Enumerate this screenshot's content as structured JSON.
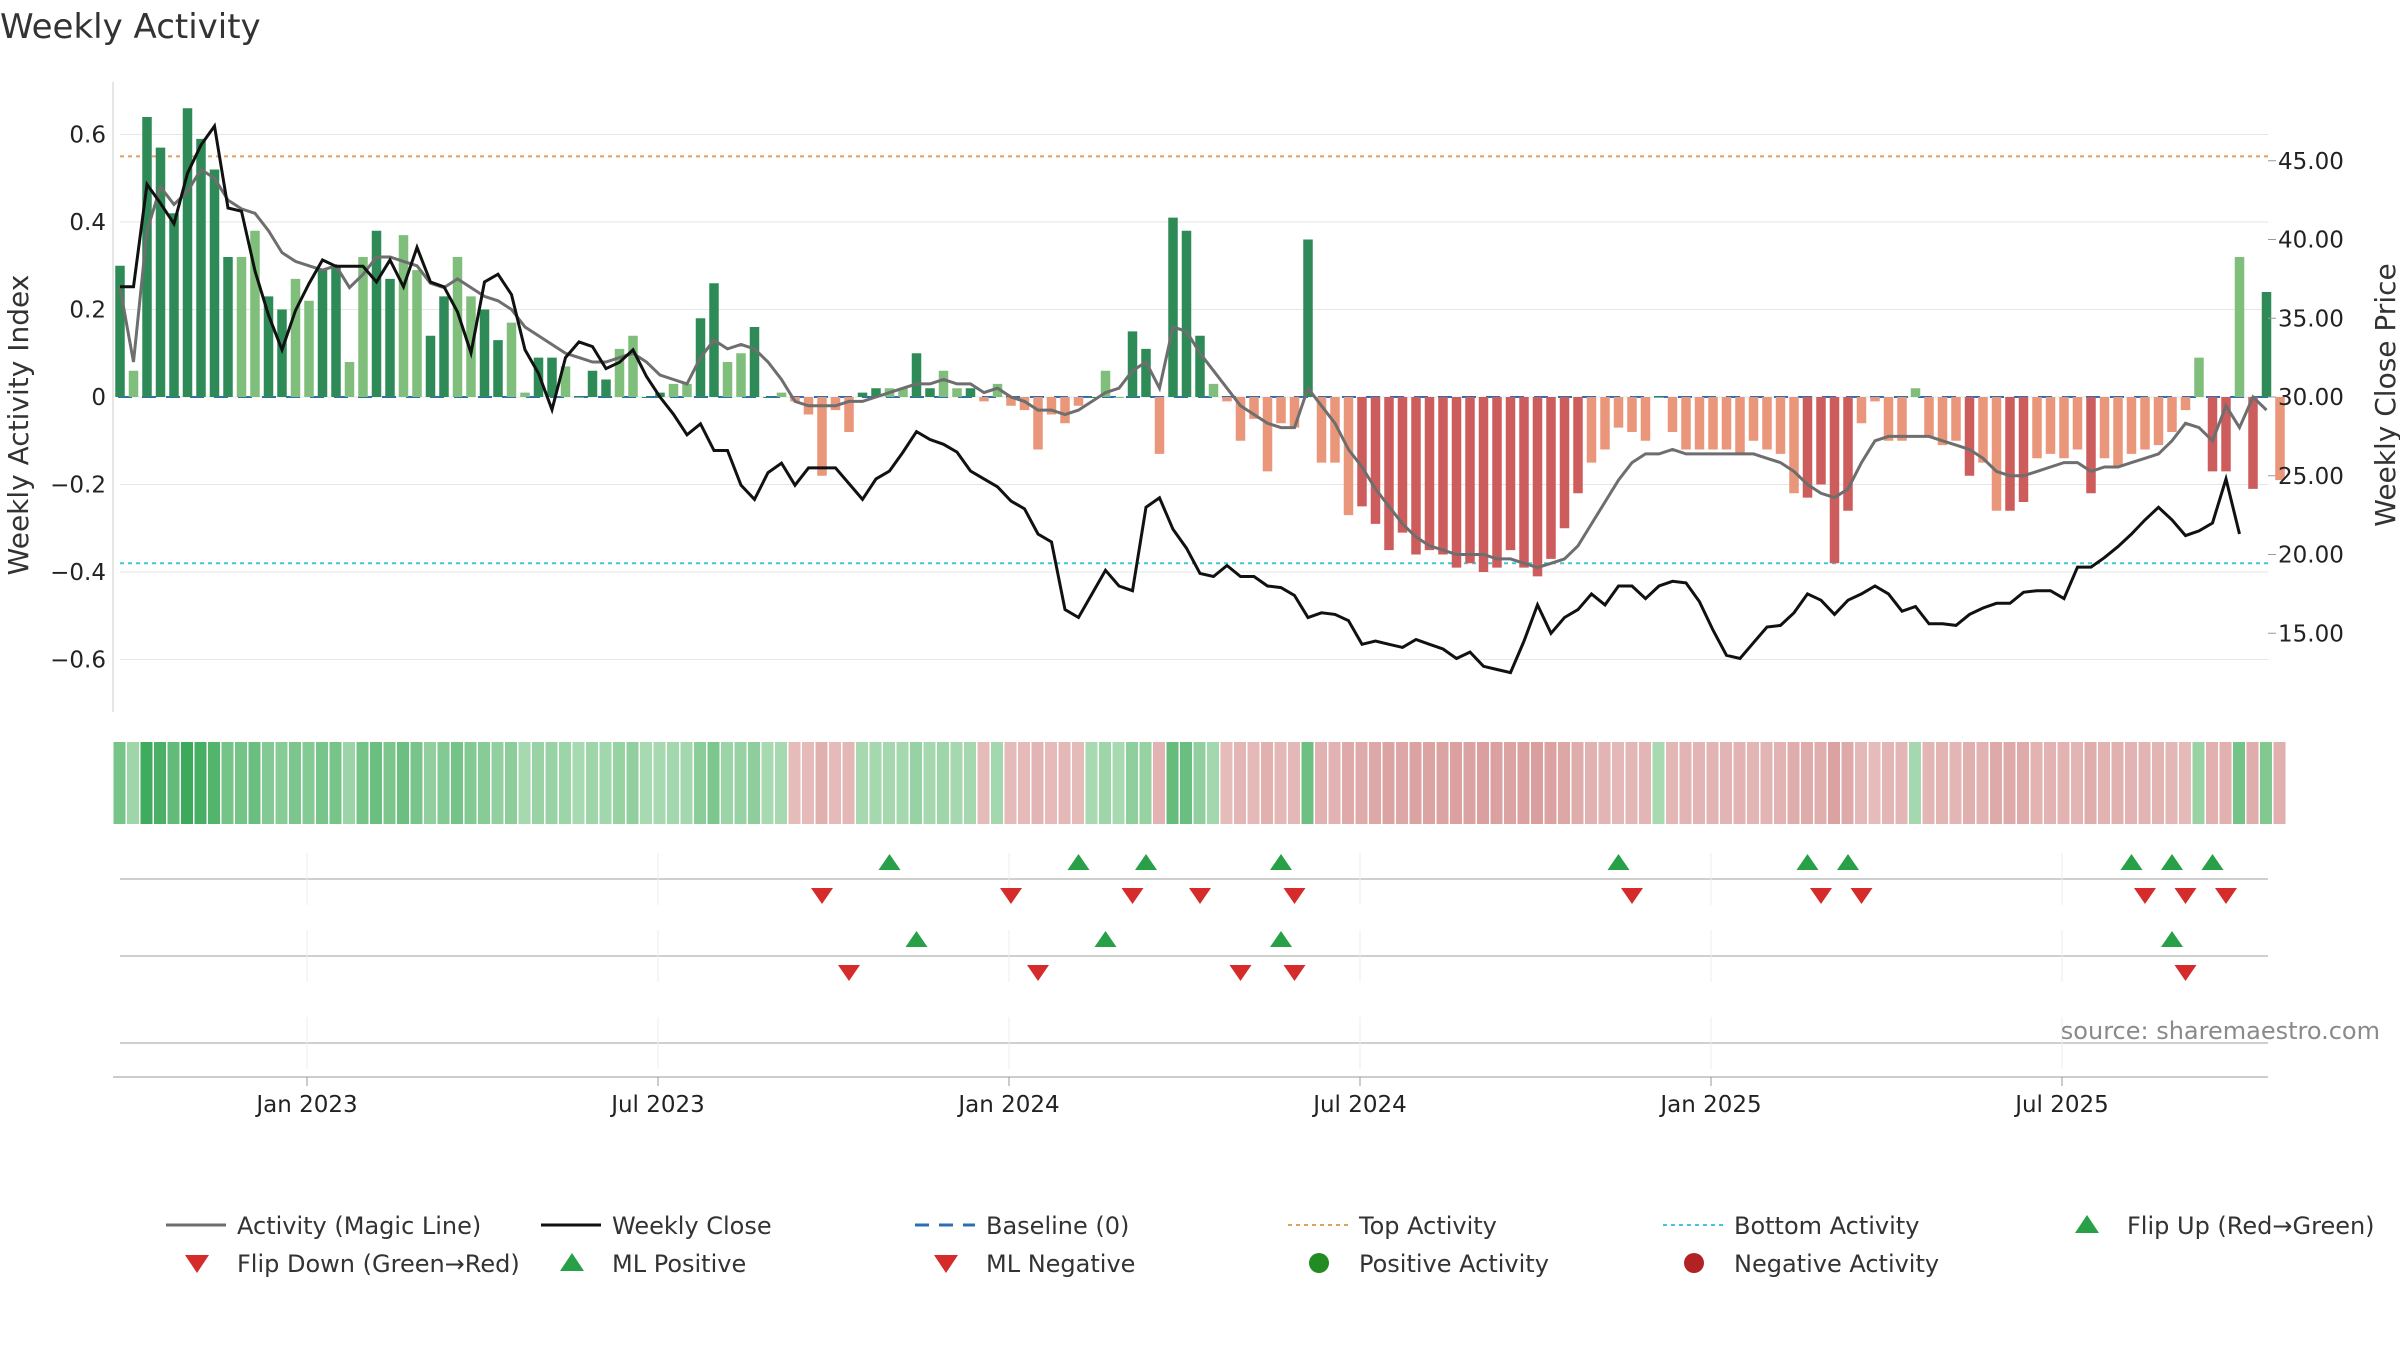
{
  "chart_data": {
    "type": "bar",
    "title": "Weekly Activity",
    "ylabel_left": "Weekly Activity Index",
    "ylabel_right": "Weekly Close Price",
    "source": "source: sharemaestro.com",
    "ylim_left": [
      -0.72,
      0.72
    ],
    "ylim_right": [
      10.0,
      50.0
    ],
    "left_ticks": [
      {
        "v": 0.6,
        "label": "0.6"
      },
      {
        "v": 0.4,
        "label": "0.4"
      },
      {
        "v": 0.2,
        "label": "0.2"
      },
      {
        "v": 0,
        "label": "0"
      },
      {
        "v": -0.2,
        "label": "−0.2"
      },
      {
        "v": -0.4,
        "label": "−0.4"
      },
      {
        "v": -0.6,
        "label": "−0.6"
      }
    ],
    "right_ticks": [
      {
        "v": 45,
        "label": "45.00"
      },
      {
        "v": 40,
        "label": "40.00"
      },
      {
        "v": 35,
        "label": "35.00"
      },
      {
        "v": 30,
        "label": "30.00"
      },
      {
        "v": 25,
        "label": "25.00"
      },
      {
        "v": 20,
        "label": "20.00"
      },
      {
        "v": 15,
        "label": "15.00"
      }
    ],
    "date_ticks": [
      {
        "label": "Jan 2023",
        "week": 14
      },
      {
        "label": "Jul 2023",
        "week": 40
      },
      {
        "label": "Jan 2024",
        "week": 66
      },
      {
        "label": "Jul 2024",
        "week": 92
      },
      {
        "label": "Jan 2025",
        "week": 118
      },
      {
        "label": "Jul 2025",
        "week": 144
      }
    ],
    "top_activity": 0.55,
    "bottom_activity": -0.38,
    "activity": [
      0.3,
      0.06,
      0.64,
      0.57,
      0.42,
      0.66,
      0.59,
      0.52,
      0.32,
      0.32,
      0.38,
      0.23,
      0.2,
      0.27,
      0.22,
      0.29,
      0.3,
      0.08,
      0.32,
      0.38,
      0.27,
      0.37,
      0.29,
      0.14,
      0.23,
      0.32,
      0.23,
      0.2,
      0.13,
      0.17,
      0.01,
      0.09,
      0.09,
      0.07,
      0.0,
      0.06,
      0.04,
      0.11,
      0.14,
      0.0,
      0.01,
      0.03,
      0.03,
      0.18,
      0.26,
      0.08,
      0.1,
      0.16,
      0.0,
      0.01,
      -0.01,
      -0.04,
      -0.18,
      -0.03,
      -0.08,
      0.01,
      0.02,
      0.02,
      0.02,
      0.1,
      0.02,
      0.06,
      0.02,
      0.02,
      -0.01,
      0.03,
      -0.02,
      -0.03,
      -0.12,
      -0.04,
      -0.06,
      -0.02,
      0.0,
      0.06,
      0.0,
      0.15,
      0.11,
      -0.13,
      0.41,
      0.38,
      0.14,
      0.03,
      -0.01,
      -0.1,
      -0.05,
      -0.17,
      -0.06,
      -0.07,
      0.36,
      -0.15,
      -0.15,
      -0.27,
      -0.25,
      -0.29,
      -0.35,
      -0.31,
      -0.36,
      -0.35,
      -0.36,
      -0.39,
      -0.38,
      -0.4,
      -0.39,
      -0.35,
      -0.39,
      -0.41,
      -0.37,
      -0.3,
      -0.22,
      -0.15,
      -0.12,
      -0.07,
      -0.08,
      -0.1,
      0.0,
      -0.08,
      -0.12,
      -0.12,
      -0.12,
      -0.12,
      -0.13,
      -0.1,
      -0.12,
      -0.13,
      -0.22,
      -0.23,
      -0.2,
      -0.38,
      -0.26,
      -0.06,
      -0.01,
      -0.1,
      -0.1,
      0.02,
      -0.09,
      -0.11,
      -0.1,
      -0.18,
      -0.15,
      -0.26,
      -0.26,
      -0.24,
      -0.14,
      -0.13,
      -0.14,
      -0.12,
      -0.22,
      -0.14,
      -0.16,
      -0.13,
      -0.12,
      -0.11,
      -0.08,
      -0.03,
      0.09,
      -0.17,
      -0.17,
      0.32,
      -0.21,
      0.24,
      -0.19
    ],
    "close": [
      37.0,
      37.0,
      43.5,
      42.3,
      41.0,
      44.2,
      46.0,
      47.2,
      42.0,
      41.8,
      38.0,
      35.2,
      33.0,
      35.5,
      37.2,
      38.7,
      38.3,
      38.3,
      38.3,
      37.3,
      38.7,
      37.0,
      39.5,
      37.3,
      37.0,
      35.4,
      32.8,
      37.3,
      37.8,
      36.5,
      33.0,
      31.5,
      29.2,
      32.5,
      33.5,
      33.2,
      31.8,
      32.2,
      33.0,
      31.3,
      30.0,
      28.9,
      27.6,
      28.3,
      26.6,
      26.6,
      24.4,
      23.5,
      25.2,
      25.8,
      24.4,
      25.5,
      25.5,
      25.5,
      24.5,
      23.5,
      24.8,
      25.3,
      26.5,
      27.8,
      27.3,
      27.0,
      26.5,
      25.3,
      24.8,
      24.3,
      23.4,
      22.9,
      21.3,
      20.8,
      16.5,
      16.0,
      17.5,
      19.0,
      18.0,
      17.7,
      23.0,
      23.6,
      21.6,
      20.4,
      18.8,
      18.6,
      19.3,
      18.6,
      18.6,
      18.0,
      17.9,
      17.4,
      16.0,
      16.3,
      16.2,
      15.8,
      14.3,
      14.5,
      14.3,
      14.1,
      14.6,
      14.3,
      14.0,
      13.4,
      13.8,
      12.9,
      12.7,
      12.5,
      14.5,
      16.8,
      15.0,
      16.0,
      16.5,
      17.5,
      16.8,
      18.0,
      18.0,
      17.2,
      18.0,
      18.3,
      18.2,
      17.0,
      15.2,
      13.6,
      13.4,
      14.4,
      15.4,
      15.5,
      16.3,
      17.5,
      17.1,
      16.2,
      17.1,
      17.5,
      18.0,
      17.5,
      16.4,
      16.7,
      15.6,
      15.6,
      15.5,
      16.2,
      16.6,
      16.9,
      16.9,
      17.6,
      17.7,
      17.7,
      17.2,
      19.2,
      19.2,
      19.8,
      20.5,
      21.3,
      22.2,
      23.0,
      22.2,
      21.2,
      21.5,
      22.0,
      24.8,
      21.3
    ],
    "magic": [
      0.25,
      0.08,
      0.38,
      0.48,
      0.44,
      0.47,
      0.52,
      0.5,
      0.45,
      0.43,
      0.42,
      0.38,
      0.33,
      0.31,
      0.3,
      0.29,
      0.3,
      0.25,
      0.28,
      0.32,
      0.32,
      0.31,
      0.3,
      0.26,
      0.25,
      0.27,
      0.25,
      0.23,
      0.22,
      0.2,
      0.16,
      0.14,
      0.12,
      0.1,
      0.09,
      0.08,
      0.08,
      0.09,
      0.1,
      0.08,
      0.05,
      0.04,
      0.03,
      0.09,
      0.13,
      0.11,
      0.12,
      0.11,
      0.08,
      0.04,
      -0.01,
      -0.02,
      -0.02,
      -0.02,
      -0.01,
      -0.01,
      0.0,
      0.01,
      0.02,
      0.03,
      0.03,
      0.04,
      0.03,
      0.03,
      0.01,
      0.02,
      0.0,
      -0.01,
      -0.03,
      -0.03,
      -0.04,
      -0.03,
      -0.01,
      0.01,
      0.02,
      0.06,
      0.08,
      0.02,
      0.16,
      0.15,
      0.1,
      0.06,
      0.02,
      -0.02,
      -0.04,
      -0.06,
      -0.07,
      -0.07,
      0.02,
      -0.02,
      -0.06,
      -0.12,
      -0.16,
      -0.21,
      -0.25,
      -0.29,
      -0.32,
      -0.34,
      -0.35,
      -0.36,
      -0.36,
      -0.36,
      -0.37,
      -0.37,
      -0.38,
      -0.39,
      -0.38,
      -0.37,
      -0.34,
      -0.29,
      -0.24,
      -0.19,
      -0.15,
      -0.13,
      -0.13,
      -0.12,
      -0.13,
      -0.13,
      -0.13,
      -0.13,
      -0.13,
      -0.13,
      -0.14,
      -0.15,
      -0.17,
      -0.2,
      -0.22,
      -0.23,
      -0.21,
      -0.15,
      -0.1,
      -0.09,
      -0.09,
      -0.09,
      -0.09,
      -0.1,
      -0.11,
      -0.12,
      -0.14,
      -0.17,
      -0.18,
      -0.18,
      -0.17,
      -0.16,
      -0.15,
      -0.15,
      -0.17,
      -0.16,
      -0.16,
      -0.15,
      -0.14,
      -0.13,
      -0.1,
      -0.06,
      -0.07,
      -0.1,
      -0.02,
      -0.07,
      0.0,
      -0.03
    ],
    "color_strip": [
      1,
      0,
      0,
      1,
      1,
      0,
      0,
      1,
      1,
      0,
      1,
      1,
      1,
      0,
      0,
      1,
      0,
      1,
      1,
      0,
      1,
      1,
      1,
      0,
      0,
      1,
      0,
      0,
      0,
      0,
      0,
      0,
      0,
      0,
      0,
      0,
      0,
      0,
      0,
      0,
      0,
      0,
      0,
      1,
      1,
      0,
      0,
      0,
      0,
      0,
      0,
      0,
      0,
      0,
      0,
      0,
      0,
      0,
      0,
      0,
      0,
      0,
      0,
      0,
      0,
      0,
      0,
      0,
      0,
      0,
      0,
      0,
      0,
      0,
      0,
      1,
      0,
      0,
      1,
      0,
      0,
      0,
      0,
      0,
      0,
      0,
      0,
      0,
      1,
      0,
      1,
      1,
      0,
      1,
      1,
      0,
      1,
      0,
      1,
      1,
      0,
      1,
      1,
      0,
      1,
      1,
      0,
      0,
      0,
      0,
      0,
      0,
      0,
      0,
      0,
      0,
      1,
      0,
      0,
      0,
      0,
      0,
      0,
      0,
      0,
      0,
      1,
      0,
      1,
      0,
      0,
      0,
      0,
      1,
      0,
      0,
      0,
      1,
      0,
      1,
      1,
      0,
      0,
      0,
      0,
      0,
      0,
      0,
      1,
      0,
      0,
      0,
      0,
      0,
      0,
      1,
      1,
      0,
      1,
      1,
      0
    ],
    "flip_up_weeks": [
      57,
      71,
      76,
      86,
      111,
      125,
      128,
      149,
      152,
      155
    ],
    "flip_down_weeks": [
      52,
      66,
      75,
      80,
      87,
      112,
      126,
      129,
      150,
      153,
      156
    ],
    "ml_positive_weeks": [
      59,
      73,
      86,
      152
    ],
    "ml_negative_weeks": [
      54,
      68,
      83,
      87,
      153
    ],
    "legend": [
      {
        "label": "Activity (Magic Line)",
        "marker": "line",
        "color": "#6e6e6e"
      },
      {
        "label": "Weekly Close",
        "marker": "line",
        "color": "#111111"
      },
      {
        "label": "Baseline (0)",
        "marker": "dash",
        "color": "#2f6fb0"
      },
      {
        "label": "Top Activity",
        "marker": "dot-line",
        "color": "#e0a060"
      },
      {
        "label": "Bottom Activity",
        "marker": "dot-line",
        "color": "#3cc8d8"
      },
      {
        "label": "Flip Up (Red→Green)",
        "marker": "tri-up",
        "color": "#27a047"
      },
      {
        "label": "Flip Down (Green→Red)",
        "marker": "tri-down",
        "color": "#d62b2b"
      },
      {
        "label": "ML Positive",
        "marker": "tri-up",
        "color": "#27a047"
      },
      {
        "label": "ML Negative",
        "marker": "tri-down",
        "color": "#d62b2b"
      },
      {
        "label": "Positive Activity",
        "marker": "circle",
        "color": "#228b22"
      },
      {
        "label": "Negative Activity",
        "marker": "circle",
        "color": "#b22222"
      }
    ],
    "colors": {
      "pos_strong": "#2e8b57",
      "pos_weak": "#7fbf7b",
      "neg_strong": "#cd5c5c",
      "neg_weak": "#e9967a",
      "magic": "#6e6e6e",
      "close": "#111111",
      "baseline": "#2f6fb0",
      "top": "#e0a060",
      "bottom": "#3cc8d8",
      "up": "#27a047",
      "down": "#d62b2b"
    }
  }
}
